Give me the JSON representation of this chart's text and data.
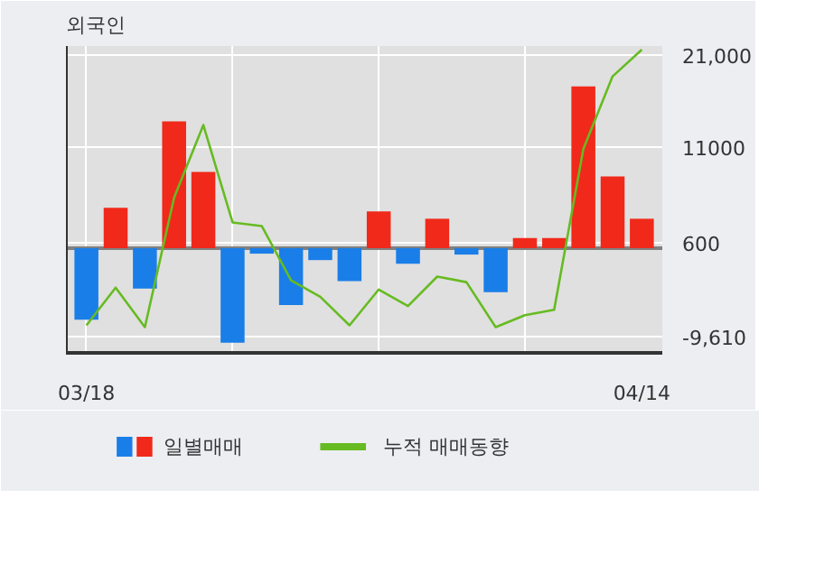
{
  "chart_data": {
    "type": "bar",
    "title": "외국인",
    "categories": [
      "03/18",
      null,
      null,
      null,
      null,
      null,
      null,
      null,
      null,
      null,
      null,
      null,
      null,
      null,
      null,
      null,
      null,
      null,
      null,
      "04/14"
    ],
    "series": [
      {
        "name": "일별매매",
        "colors": [
          "#1a7ee8",
          "#f0291a",
          "#1a7ee8",
          "#f0291a",
          "#f0291a",
          "#1a7ee8",
          "#1a7ee8",
          "#1a7ee8",
          "#1a7ee8",
          "#1a7ee8",
          "#f0291a",
          "#1a7ee8",
          "#f0291a",
          "#1a7ee8",
          "#1a7ee8",
          "#f0291a",
          "#f0291a",
          "#f0291a",
          "#f0291a",
          "#f0291a"
        ],
        "values": [
          -7800,
          4400,
          -4400,
          13800,
          8300,
          -10300,
          -600,
          -6200,
          -1300,
          -3600,
          4000,
          -1700,
          3200,
          -700,
          -4800,
          1100,
          1100,
          17600,
          7800,
          3200
        ]
      },
      {
        "name": "누적 매매동향",
        "type": "line",
        "color": "#66bb22",
        "values": [
          -8400,
          -4300,
          -8600,
          5500,
          13400,
          2800,
          2400,
          -3500,
          -5300,
          -8400,
          -4500,
          -6300,
          -3100,
          -3700,
          -8600,
          -7300,
          -6700,
          10800,
          18700,
          21600
        ]
      }
    ],
    "ylim": [
      -11400,
      22000
    ],
    "yticks": [
      {
        "value": 21000,
        "label": "21,000"
      },
      11000,
      600,
      {
        "value": -9610,
        "label": "-9,610"
      }
    ],
    "ref_lines": [
      {
        "axis": "y",
        "value": 0,
        "color": "#808080"
      }
    ],
    "grid": true,
    "legend": "bottom",
    "line_style": "solid",
    "marker": "none"
  }
}
